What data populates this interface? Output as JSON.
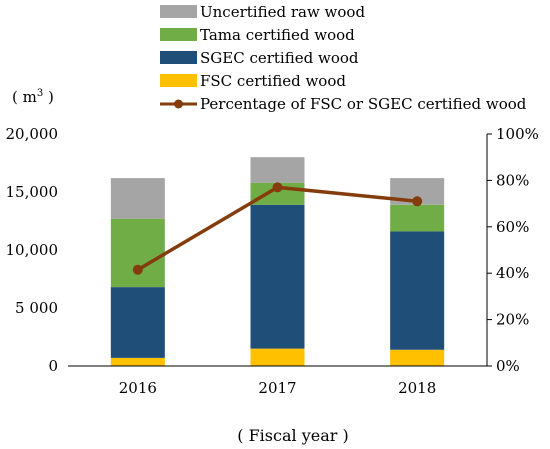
{
  "chart_data": {
    "type": "bar",
    "stacked": true,
    "categories": [
      "2016",
      "2017",
      "2018"
    ],
    "series": [
      {
        "name": "FSC certified wood",
        "color": "#ffc000",
        "values": [
          700,
          1500,
          1400
        ]
      },
      {
        "name": "SGEC certified wood",
        "color": "#1f4e79",
        "values": [
          6100,
          12400,
          10200
        ]
      },
      {
        "name": "Tama certified wood",
        "color": "#70ad47",
        "values": [
          5900,
          1900,
          2300
        ]
      },
      {
        "name": "Uncertified raw wood",
        "color": "#a5a5a5",
        "values": [
          3500,
          2200,
          2300
        ]
      }
    ],
    "line_series": {
      "name": "Percentage of FSC or SGEC certified wood",
      "color": "#843c0c",
      "axis": "right",
      "values": [
        0.415,
        0.77,
        0.71
      ]
    },
    "legend_order": [
      "Uncertified raw wood",
      "Tama certified wood",
      "SGEC certified wood",
      "FSC certified wood",
      "Percentage of FSC or SGEC certified wood"
    ],
    "legend_position": "top",
    "y_left": {
      "min": 0,
      "max": 20000,
      "ticks": [
        "0",
        "5 000",
        "10,000",
        "15,000",
        "20,000"
      ],
      "unit_label": "( m",
      "unit_sup": "3",
      "unit_close": " )"
    },
    "y_right": {
      "min": 0,
      "max": 1,
      "ticks": [
        "0%",
        "20%",
        "40%",
        "60%",
        "80%",
        "100%"
      ]
    },
    "xlabel": "( Fiscal year )",
    "grid": false
  }
}
